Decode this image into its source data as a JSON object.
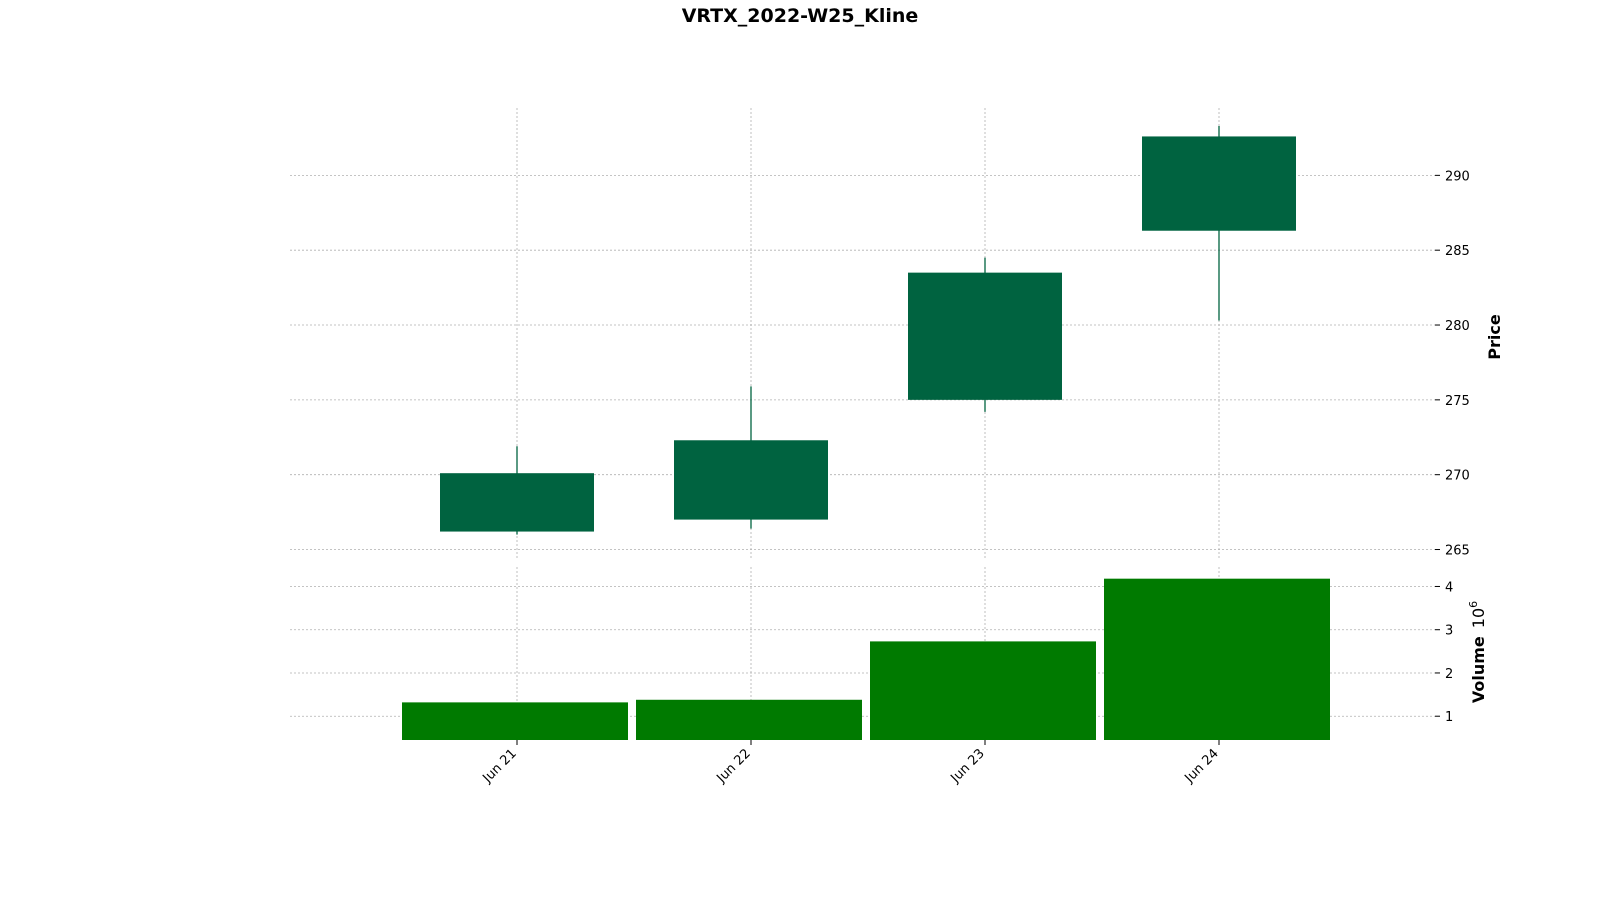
{
  "chart_data": {
    "type": "candlestick",
    "title": "VRTX_2022-W25_Kline",
    "categories": [
      "Jun 21",
      "Jun 22",
      "Jun 23",
      "Jun 24"
    ],
    "ohlc": [
      {
        "date": "Jun 21",
        "open": 266.2,
        "high": 271.9,
        "low": 266.0,
        "close": 270.1
      },
      {
        "date": "Jun 22",
        "open": 267.0,
        "high": 275.9,
        "low": 266.4,
        "close": 272.3
      },
      {
        "date": "Jun 23",
        "open": 275.0,
        "high": 284.5,
        "low": 274.2,
        "close": 283.5
      },
      {
        "date": "Jun 24",
        "open": 286.3,
        "high": 293.3,
        "low": 280.3,
        "close": 292.6
      }
    ],
    "volume": [
      1.32,
      1.38,
      2.73,
      4.18
    ],
    "price_axis": {
      "label": "Price",
      "ticks": [
        265,
        270,
        275,
        280,
        285,
        290
      ],
      "ylim": [
        264.3,
        294.5
      ]
    },
    "volume_axis": {
      "label": "Volume",
      "multiplier": "10",
      "exponent": "6",
      "ticks": [
        1,
        2,
        3,
        4
      ],
      "ylim": [
        0.45,
        4.45
      ]
    },
    "colors": {
      "candle_up": "#006340",
      "volume_bar": "#007a00",
      "grid": "#b0b0b0"
    }
  }
}
